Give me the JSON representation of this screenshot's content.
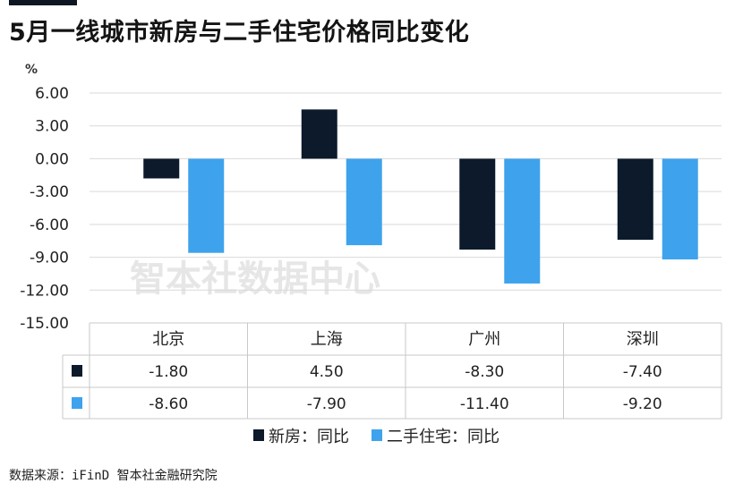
{
  "title": "5月一线城市新房与二手住宅价格同比变化",
  "source": "数据来源：iFinD 智本社金融研究院",
  "watermark": "智本社数据中心",
  "chart_data": {
    "type": "bar",
    "title": "5月一线城市新房与二手住宅价格同比变化",
    "ylabel": "%",
    "ylim": [
      -15,
      6
    ],
    "yticks": [
      6,
      3,
      0,
      -3,
      -6,
      -9,
      -12,
      -15
    ],
    "ytick_labels": [
      "6.00",
      "3.00",
      "0.00",
      "-3.00",
      "-6.00",
      "-9.00",
      "-12.00",
      "-15.00"
    ],
    "grid": true,
    "legend": "bottom",
    "data_table": true,
    "categories": [
      "北京",
      "上海",
      "广州",
      "深圳"
    ],
    "series": [
      {
        "name": "新房：同比",
        "color": "#0c1a2b",
        "values": [
          -1.8,
          4.5,
          -8.3,
          -7.4
        ],
        "labels": [
          "-1.80",
          "4.50",
          "-8.30",
          "-7.40"
        ]
      },
      {
        "name": "二手住宅：同比",
        "color": "#3ea3ec",
        "values": [
          -8.6,
          -7.9,
          -11.4,
          -9.2
        ],
        "labels": [
          "-8.60",
          "-7.90",
          "-11.40",
          "-9.20"
        ]
      }
    ]
  }
}
